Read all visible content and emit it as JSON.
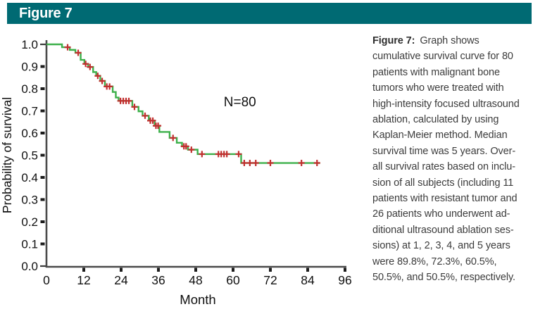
{
  "banner": {
    "label": "Figure 7",
    "bg": "#006a73"
  },
  "caption": {
    "label": "Figure 7:",
    "text": "Graph shows\ncumulative survival curve for 80\npatients with malignant bone\ntumors who were treated with\nhigh-intensity focused ultrasound\nablation, calculated by using\nKaplan-Meier method. Median\nsurvival time was 5 years. Over-\nall survival rates based on inclu-\nsion of all subjects (including 11\npatients with resistant tumor and\n26 patients who underwent ad-\nditional ultrasound ablation ses-\nsions) at 1, 2, 3, 4, and 5 years\nwere 89.8%, 72.3%, 60.5%,\n50.5%, and 50.5%, respectively."
  },
  "chart_data": {
    "type": "line",
    "subtype": "kaplan-meier-step",
    "title": "",
    "xlabel": "Month",
    "ylabel": "Probability of survival",
    "xlim": [
      0,
      96
    ],
    "ylim": [
      0.0,
      1.0
    ],
    "xticks": [
      0,
      12,
      24,
      36,
      48,
      60,
      72,
      84,
      96
    ],
    "yticks": [
      0.0,
      0.1,
      0.2,
      0.3,
      0.4,
      0.5,
      0.6,
      0.7,
      0.8,
      0.9,
      1.0
    ],
    "grid": false,
    "annotation": {
      "text": "N=80",
      "x_month": 57,
      "y_prob": 0.72
    },
    "n_subjects": 80,
    "survival_rates_pct_years_1_to_5": [
      89.8,
      72.3,
      60.5,
      50.5,
      50.5
    ],
    "median_survival_years": 5,
    "series": [
      {
        "name": "Cumulative survival (Kaplan-Meier)",
        "color": "#3cb04a",
        "start": [
          0,
          1.0
        ],
        "steps": [
          [
            5,
            0.987
          ],
          [
            7.5,
            0.975
          ],
          [
            9.3,
            0.962
          ],
          [
            11,
            0.93
          ],
          [
            12.2,
            0.912
          ],
          [
            13.4,
            0.898
          ],
          [
            15,
            0.875
          ],
          [
            16,
            0.858
          ],
          [
            17.3,
            0.835
          ],
          [
            18.8,
            0.81
          ],
          [
            21.3,
            0.785
          ],
          [
            22.3,
            0.76
          ],
          [
            23.2,
            0.745
          ],
          [
            27.6,
            0.718
          ],
          [
            29.6,
            0.698
          ],
          [
            30.9,
            0.678
          ],
          [
            32.9,
            0.656
          ],
          [
            34.8,
            0.633
          ],
          [
            36.3,
            0.605
          ],
          [
            39.6,
            0.578
          ],
          [
            41.9,
            0.556
          ],
          [
            43.6,
            0.54
          ],
          [
            45.5,
            0.525
          ],
          [
            48.6,
            0.505
          ],
          [
            62.6,
            0.465
          ]
        ],
        "end_month": 88
      }
    ],
    "censors": {
      "color": "#c22f2f",
      "marks": [
        [
          6.8,
          0.987
        ],
        [
          10.2,
          0.962
        ],
        [
          12.6,
          0.912
        ],
        [
          14.0,
          0.898
        ],
        [
          16.5,
          0.858
        ],
        [
          17.9,
          0.835
        ],
        [
          19.4,
          0.81
        ],
        [
          20.3,
          0.81
        ],
        [
          23.8,
          0.745
        ],
        [
          24.7,
          0.745
        ],
        [
          25.6,
          0.745
        ],
        [
          26.5,
          0.745
        ],
        [
          28.3,
          0.718
        ],
        [
          31.7,
          0.678
        ],
        [
          33.4,
          0.656
        ],
        [
          34.2,
          0.656
        ],
        [
          35.2,
          0.633
        ],
        [
          35.9,
          0.633
        ],
        [
          40.7,
          0.578
        ],
        [
          44.2,
          0.54
        ],
        [
          44.9,
          0.54
        ],
        [
          46.6,
          0.525
        ],
        [
          50.0,
          0.505
        ],
        [
          55.3,
          0.505
        ],
        [
          56.2,
          0.505
        ],
        [
          57.1,
          0.505
        ],
        [
          58.0,
          0.505
        ],
        [
          61.8,
          0.505
        ],
        [
          63.6,
          0.465
        ],
        [
          65.4,
          0.465
        ],
        [
          67.3,
          0.465
        ],
        [
          72.0,
          0.465
        ],
        [
          82.0,
          0.465
        ],
        [
          87.0,
          0.465
        ]
      ]
    }
  }
}
